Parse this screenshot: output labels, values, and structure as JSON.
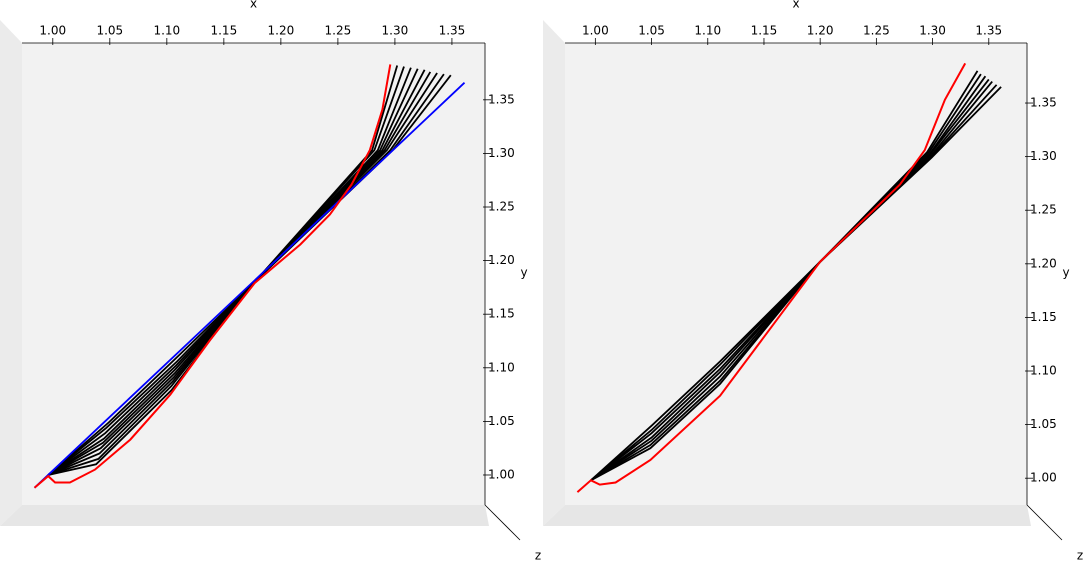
{
  "chart_data": [
    {
      "type": "line",
      "x_label": "x",
      "y_label": "y",
      "z_label": "z",
      "xlim": [
        0.973,
        1.379
      ],
      "ylim": [
        0.972,
        1.403
      ],
      "xticks": [
        {
          "value": 1.0,
          "label": "1.00"
        },
        {
          "value": 1.05,
          "label": "1.05"
        },
        {
          "value": 1.1,
          "label": "1.10"
        },
        {
          "value": 1.15,
          "label": "1.15"
        },
        {
          "value": 1.2,
          "label": "1.20"
        },
        {
          "value": 1.25,
          "label": "1.25"
        },
        {
          "value": 1.3,
          "label": "1.30"
        },
        {
          "value": 1.35,
          "label": "1.35"
        }
      ],
      "yticks": [
        {
          "value": 1.0,
          "label": "1.00"
        },
        {
          "value": 1.05,
          "label": "1.05"
        },
        {
          "value": 1.1,
          "label": "1.10"
        },
        {
          "value": 1.15,
          "label": "1.15"
        },
        {
          "value": 1.2,
          "label": "1.20"
        },
        {
          "value": 1.25,
          "label": "1.25"
        },
        {
          "value": 1.3,
          "label": "1.30"
        },
        {
          "value": 1.35,
          "label": "1.35"
        }
      ],
      "series": [
        {
          "color": "#000000",
          "x": [
            0.996,
            1.038,
            1.104,
            1.177,
            1.28,
            1.302
          ],
          "values": [
            1.0,
            1.01,
            1.079,
            1.18,
            1.303,
            1.382
          ]
        },
        {
          "color": "#000000",
          "x": [
            0.996,
            1.04,
            1.104,
            1.177,
            1.282,
            1.308
          ],
          "values": [
            1.0,
            1.015,
            1.083,
            1.18,
            1.303,
            1.381
          ]
        },
        {
          "color": "#000000",
          "x": [
            0.996,
            1.041,
            1.105,
            1.177,
            1.285,
            1.314
          ],
          "values": [
            1.0,
            1.02,
            1.087,
            1.18,
            1.303,
            1.38
          ]
        },
        {
          "color": "#000000",
          "x": [
            0.996,
            1.042,
            1.106,
            1.177,
            1.287,
            1.32
          ],
          "values": [
            1.0,
            1.025,
            1.091,
            1.18,
            1.303,
            1.379
          ]
        },
        {
          "color": "#000000",
          "x": [
            0.996,
            1.044,
            1.107,
            1.177,
            1.289,
            1.326
          ],
          "values": [
            1.0,
            1.03,
            1.095,
            1.18,
            1.303,
            1.378
          ]
        },
        {
          "color": "#000000",
          "x": [
            0.996,
            1.045,
            1.107,
            1.177,
            1.291,
            1.331
          ],
          "values": [
            1.0,
            1.034,
            1.098,
            1.18,
            1.303,
            1.376
          ]
        },
        {
          "color": "#000000",
          "x": [
            0.996,
            1.046,
            1.108,
            1.177,
            1.293,
            1.337
          ],
          "values": [
            1.0,
            1.039,
            1.102,
            1.18,
            1.303,
            1.375
          ]
        },
        {
          "color": "#000000",
          "x": [
            0.996,
            1.047,
            1.109,
            1.177,
            1.296,
            1.343
          ],
          "values": [
            1.0,
            1.044,
            1.106,
            1.18,
            1.303,
            1.374
          ]
        },
        {
          "color": "#000000",
          "x": [
            0.996,
            1.049,
            1.109,
            1.177,
            1.298,
            1.349
          ],
          "values": [
            1.0,
            1.049,
            1.11,
            1.18,
            1.303,
            1.373
          ]
        },
        {
          "color": "#0000ff",
          "x": [
            0.984,
            1.361
          ],
          "values": [
            0.988,
            1.366
          ]
        },
        {
          "color": "#ff0000",
          "x": [
            0.984,
            0.996,
            1.002,
            1.015,
            1.037,
            1.068,
            1.103,
            1.138,
            1.177,
            1.217,
            1.243,
            1.262,
            1.278,
            1.289,
            1.296
          ],
          "values": [
            0.988,
            0.999,
            0.993,
            0.993,
            1.005,
            1.033,
            1.075,
            1.126,
            1.179,
            1.215,
            1.243,
            1.271,
            1.303,
            1.341,
            1.383
          ]
        }
      ]
    },
    {
      "type": "line",
      "x_label": "x",
      "y_label": "y",
      "z_label": "z",
      "xlim": [
        0.973,
        1.384
      ],
      "ylim": [
        0.975,
        1.406
      ],
      "xticks": [
        {
          "value": 1.0,
          "label": "1.00"
        },
        {
          "value": 1.05,
          "label": "1.05"
        },
        {
          "value": 1.1,
          "label": "1.10"
        },
        {
          "value": 1.15,
          "label": "1.15"
        },
        {
          "value": 1.2,
          "label": "1.20"
        },
        {
          "value": 1.25,
          "label": "1.25"
        },
        {
          "value": 1.3,
          "label": "1.30"
        },
        {
          "value": 1.35,
          "label": "1.35"
        }
      ],
      "yticks": [
        {
          "value": 1.0,
          "label": "1.00"
        },
        {
          "value": 1.05,
          "label": "1.05"
        },
        {
          "value": 1.1,
          "label": "1.10"
        },
        {
          "value": 1.15,
          "label": "1.15"
        },
        {
          "value": 1.2,
          "label": "1.20"
        },
        {
          "value": 1.25,
          "label": "1.25"
        },
        {
          "value": 1.3,
          "label": "1.30"
        },
        {
          "value": 1.35,
          "label": "1.35"
        }
      ],
      "series": [
        {
          "color": "#000000",
          "x": [
            0.996,
            1.049,
            1.111,
            1.2,
            1.295,
            1.34
          ],
          "values": [
            0.998,
            1.028,
            1.088,
            1.202,
            1.304,
            1.38
          ]
        },
        {
          "color": "#000000",
          "x": [
            0.996,
            1.049,
            1.111,
            1.2,
            1.296,
            1.343
          ],
          "values": [
            0.998,
            1.031,
            1.091,
            1.202,
            1.303,
            1.377
          ]
        },
        {
          "color": "#000000",
          "x": [
            0.996,
            1.05,
            1.111,
            1.2,
            1.297,
            1.347
          ],
          "values": [
            0.998,
            1.035,
            1.095,
            1.202,
            1.302,
            1.375
          ]
        },
        {
          "color": "#000000",
          "x": [
            0.996,
            1.05,
            1.111,
            1.2,
            1.297,
            1.35
          ],
          "values": [
            0.998,
            1.038,
            1.099,
            1.202,
            1.301,
            1.372
          ]
        },
        {
          "color": "#000000",
          "x": [
            0.996,
            1.05,
            1.111,
            1.2,
            1.298,
            1.353
          ],
          "values": [
            0.998,
            1.042,
            1.102,
            1.202,
            1.3,
            1.37
          ]
        },
        {
          "color": "#000000",
          "x": [
            0.996,
            1.05,
            1.111,
            1.2,
            1.299,
            1.357
          ],
          "values": [
            0.998,
            1.045,
            1.106,
            1.202,
            1.3,
            1.367
          ]
        },
        {
          "color": "#000000",
          "x": [
            0.996,
            1.05,
            1.111,
            1.2,
            1.299,
            1.361
          ],
          "values": [
            0.998,
            1.049,
            1.109,
            1.202,
            1.299,
            1.365
          ]
        },
        {
          "color": "#ff0000",
          "x": [
            0.984,
            0.996,
            1.004,
            1.018,
            1.049,
            1.111,
            1.2,
            1.271,
            1.293,
            1.311,
            1.329
          ],
          "values": [
            0.987,
            0.998,
            0.994,
            0.996,
            1.017,
            1.077,
            1.202,
            1.274,
            1.306,
            1.353,
            1.387
          ]
        }
      ]
    }
  ]
}
